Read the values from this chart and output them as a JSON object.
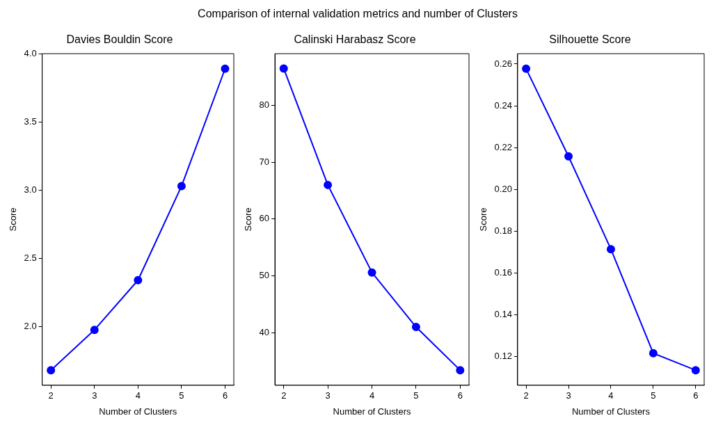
{
  "chart_data": [
    {
      "type": "line",
      "title": "Davies Bouldin Score",
      "xlabel": "Number of Clusters",
      "ylabel": "Score",
      "annotations": [
        "Comparison of internal validation metrics and number of Clusters"
      ],
      "x": [
        2,
        3,
        4,
        5,
        6
      ],
      "values": [
        1.68,
        1.976,
        2.34,
        3.03,
        3.89
      ],
      "color": "#0000ff",
      "marker": "circle",
      "xlim": [
        1.8,
        6.2
      ],
      "xticks": [
        2,
        3,
        4,
        5,
        6
      ],
      "ylim": [
        1.57,
        4.0
      ],
      "yticks": [
        {
          "value": 2,
          "label": "2.0"
        },
        {
          "value": 2.5,
          "label": "2.5"
        },
        {
          "value": 3,
          "label": "3.0"
        },
        {
          "value": 3.5,
          "label": "3.5"
        },
        {
          "value": 4,
          "label": "4.0"
        }
      ],
      "grid": false
    },
    {
      "type": "line",
      "title": "Calinski Harabasz Score",
      "xlabel": "Number of Clusters",
      "ylabel": "Score",
      "x": [
        2,
        3,
        4,
        5,
        6
      ],
      "values": [
        86.5,
        66.0,
        50.6,
        41.0,
        33.4
      ],
      "color": "#0000ff",
      "marker": "circle",
      "xlim": [
        1.8,
        6.2
      ],
      "xticks": [
        2,
        3,
        4,
        5,
        6
      ],
      "ylim": [
        30.75,
        89.1
      ],
      "yticks": [
        40,
        50,
        60,
        70,
        80
      ],
      "grid": false
    },
    {
      "type": "line",
      "title": "Silhouette Score",
      "xlabel": "Number of Clusters",
      "ylabel": "Score",
      "x": [
        2,
        3,
        4,
        5,
        6
      ],
      "values": [
        0.2577,
        0.2158,
        0.1714,
        0.1216,
        0.1135
      ],
      "color": "#0000ff",
      "marker": "circle",
      "xlim": [
        1.8,
        6.2
      ],
      "xticks": [
        2,
        3,
        4,
        5,
        6
      ],
      "ylim": [
        0.1063,
        0.2649
      ],
      "yticks": [
        {
          "value": 0.12,
          "label": "0.12"
        },
        {
          "value": 0.14,
          "label": "0.14"
        },
        {
          "value": 0.16,
          "label": "0.16"
        },
        {
          "value": 0.18,
          "label": "0.18"
        },
        {
          "value": 0.2,
          "label": "0.20"
        },
        {
          "value": 0.22,
          "label": "0.22"
        },
        {
          "value": 0.24,
          "label": "0.24"
        },
        {
          "value": 0.26,
          "label": "0.26"
        }
      ],
      "grid": false
    }
  ]
}
